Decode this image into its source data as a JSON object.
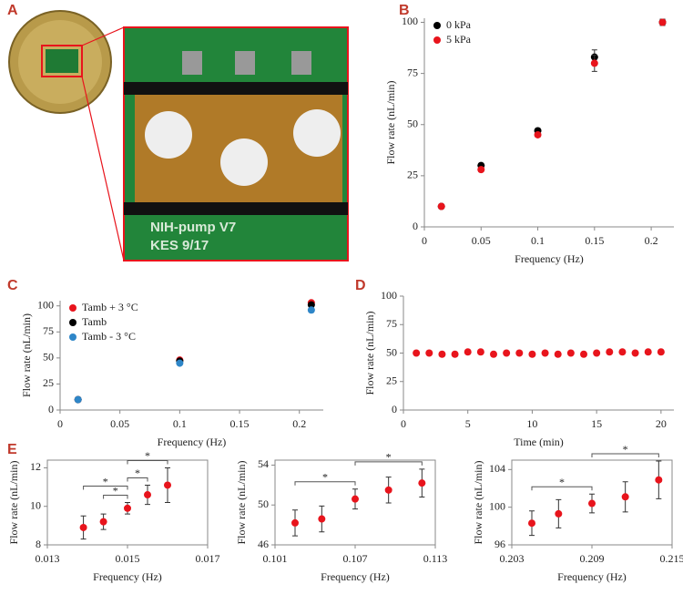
{
  "photo": {
    "panel": "A",
    "board_lines": [
      "NIH-pump V7",
      "KES 9/17"
    ]
  },
  "chart_data": [
    {
      "type": "scatter",
      "panel": "B",
      "x_label": "Frequency (Hz)",
      "y_label": "Flow rate (nL/min)",
      "x": [
        0.015,
        0.05,
        0.1,
        0.15,
        0.21
      ],
      "series": [
        {
          "name": "0 kPa",
          "color": "#000000",
          "values": [
            10,
            30,
            47,
            83,
            100
          ],
          "errors": [
            0.5,
            1,
            1,
            3.5,
            1.5
          ]
        },
        {
          "name": "5 kPa",
          "color": "#e8141c",
          "values": [
            10,
            28,
            45,
            80,
            100
          ],
          "errors": [
            0.5,
            1,
            1,
            4,
            1.5
          ]
        }
      ],
      "xlim": [
        0,
        0.22
      ],
      "xticks": [
        0,
        0.05,
        0.1,
        0.15,
        0.2
      ],
      "ylim": [
        0,
        102
      ],
      "yticks": [
        0,
        25,
        50,
        75,
        100
      ],
      "legend": "upper left",
      "box": false
    },
    {
      "type": "scatter",
      "panel": "C",
      "x_label": "Frequency (Hz)",
      "y_label": "Flow rate (nL/min)",
      "x": [
        0.015,
        0.1,
        0.21
      ],
      "series": [
        {
          "name": "Tamb + 3 °C",
          "color": "#e8141c",
          "values": [
            10,
            48,
            103
          ],
          "errors": [
            0.5,
            1,
            1.5
          ]
        },
        {
          "name": "Tamb",
          "color": "#000000",
          "values": [
            10,
            47,
            101
          ],
          "errors": [
            0.5,
            1,
            1.5
          ]
        },
        {
          "name": "Tamb - 3 °C",
          "color": "#2e86c8",
          "values": [
            10,
            45,
            96
          ],
          "errors": [
            0.5,
            1,
            2
          ]
        }
      ],
      "xlim": [
        0,
        0.22
      ],
      "xticks": [
        0,
        0.05,
        0.1,
        0.15,
        0.2
      ],
      "ylim": [
        0,
        105
      ],
      "yticks": [
        0,
        25,
        50,
        75,
        100
      ],
      "legend": "upper left",
      "box": false
    },
    {
      "type": "scatter",
      "panel": "D",
      "x_label": "Time (min)",
      "y_label": "Flow rate (nL/min)",
      "x": [
        1,
        2,
        3,
        4,
        5,
        6,
        7,
        8,
        9,
        10,
        11,
        12,
        13,
        14,
        15,
        16,
        17,
        18,
        19,
        20
      ],
      "series": [
        {
          "name": null,
          "color": "#e8141c",
          "values": [
            50,
            50,
            49,
            49,
            51,
            51,
            49,
            50,
            50,
            49,
            50,
            49,
            50,
            49,
            50,
            51,
            51,
            50,
            51,
            51
          ]
        }
      ],
      "xlim": [
        0,
        21
      ],
      "xticks": [
        0,
        5,
        10,
        15,
        20
      ],
      "ylim": [
        0,
        100
      ],
      "yticks": [
        0,
        25,
        50,
        75,
        100
      ],
      "box": false
    },
    {
      "type": "scatter",
      "panel": "E",
      "x_label": "Frequency (Hz)",
      "y_label": "Flow rate (nL/min)",
      "x": [
        0.0139,
        0.0144,
        0.015,
        0.0155,
        0.016
      ],
      "series": [
        {
          "name": null,
          "color": "#e8141c",
          "values": [
            8.9,
            9.2,
            9.9,
            10.6,
            11.1
          ],
          "errors": [
            0.6,
            0.4,
            0.3,
            0.5,
            0.9
          ]
        }
      ],
      "xlim": [
        0.013,
        0.017
      ],
      "xticks": [
        0.013,
        0.015,
        0.017
      ],
      "ylim": [
        8,
        12.4
      ],
      "yticks": [
        8,
        10,
        12
      ],
      "box": true,
      "significance": [
        {
          "pair": [
            1,
            2
          ],
          "label": "*"
        },
        {
          "pair": [
            2,
            3
          ],
          "label": "*"
        },
        {
          "pair": [
            0,
            2
          ],
          "label": "*"
        },
        {
          "pair": [
            2,
            4
          ],
          "label": "*"
        }
      ]
    },
    {
      "type": "scatter",
      "x_label": "Frequency (Hz)",
      "y_label": "Flow rate (nL/min)",
      "x": [
        0.1025,
        0.1045,
        0.107,
        0.1095,
        0.112
      ],
      "series": [
        {
          "name": null,
          "color": "#e8141c",
          "values": [
            48.2,
            48.6,
            50.6,
            51.5,
            52.2
          ],
          "errors": [
            1.3,
            1.3,
            1.0,
            1.3,
            1.4
          ]
        }
      ],
      "xlim": [
        0.101,
        0.113
      ],
      "xticks": [
        0.101,
        0.107,
        0.113
      ],
      "ylim": [
        46,
        54.5
      ],
      "yticks": [
        46,
        50,
        54
      ],
      "box": true,
      "significance": [
        {
          "pair": [
            0,
            2
          ],
          "label": "*"
        },
        {
          "pair": [
            2,
            4
          ],
          "label": "*"
        }
      ]
    },
    {
      "type": "scatter",
      "x_label": "Frequency (Hz)",
      "y_label": "Flow rate (nL/min)",
      "x": [
        0.2045,
        0.2065,
        0.209,
        0.2115,
        0.214
      ],
      "series": [
        {
          "name": null,
          "color": "#e8141c",
          "values": [
            98.3,
            99.3,
            100.4,
            101.1,
            102.9
          ],
          "errors": [
            1.3,
            1.5,
            1.0,
            1.6,
            2.0
          ]
        }
      ],
      "xlim": [
        0.203,
        0.215
      ],
      "xticks": [
        0.203,
        0.209,
        0.215
      ],
      "ylim": [
        96,
        105
      ],
      "yticks": [
        96,
        100,
        104
      ],
      "box": true,
      "significance": [
        {
          "pair": [
            0,
            2
          ],
          "label": "*"
        },
        {
          "pair": [
            2,
            4
          ],
          "label": "*"
        }
      ]
    }
  ]
}
